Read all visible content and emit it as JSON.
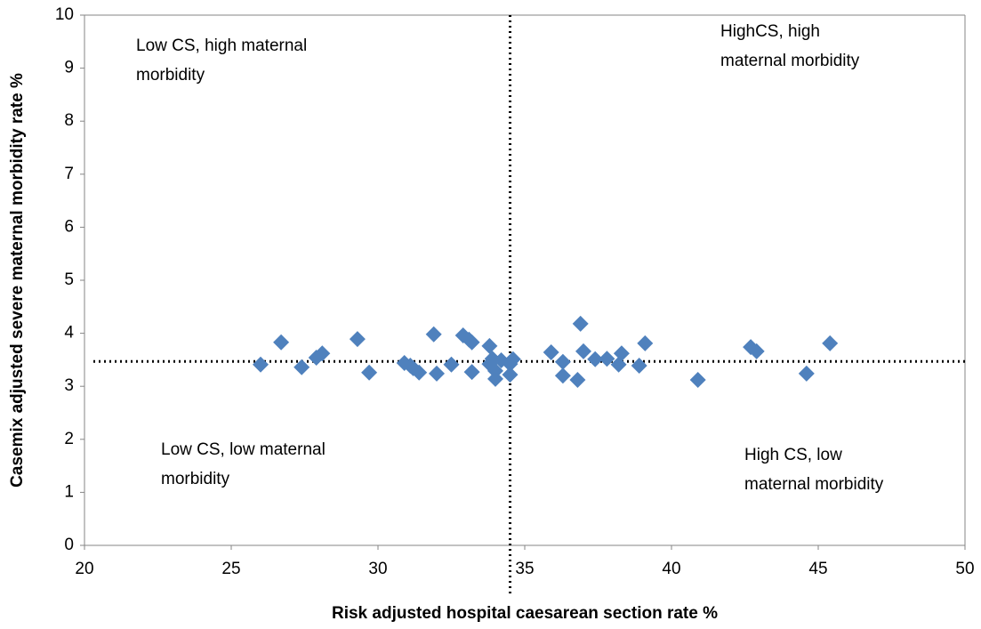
{
  "chart_data": {
    "type": "scatter",
    "x_label": "Risk adjusted hospital caesarean section rate %",
    "y_label": "Casemix adjusted severe maternal morbidity rate %",
    "x": [
      26.0,
      26.7,
      27.4,
      27.9,
      28.1,
      29.3,
      29.7,
      30.9,
      31.1,
      31.2,
      31.4,
      31.9,
      32.0,
      32.5,
      32.9,
      33.1,
      33.2,
      33.2,
      33.8,
      33.8,
      33.9,
      34.0,
      34.0,
      34.2,
      34.5,
      34.5,
      34.6,
      35.9,
      36.3,
      36.3,
      36.8,
      36.9,
      37.0,
      37.4,
      37.8,
      38.2,
      38.3,
      38.9,
      39.1,
      40.9,
      42.7,
      42.9,
      44.6,
      45.4
    ],
    "values": [
      3.41,
      3.83,
      3.36,
      3.54,
      3.62,
      3.89,
      3.26,
      3.44,
      3.39,
      3.34,
      3.26,
      3.98,
      3.24,
      3.41,
      3.96,
      3.88,
      3.83,
      3.27,
      3.76,
      3.42,
      3.52,
      3.29,
      3.14,
      3.49,
      3.42,
      3.22,
      3.51,
      3.64,
      3.46,
      3.2,
      3.12,
      4.18,
      3.66,
      3.51,
      3.52,
      3.41,
      3.62,
      3.39,
      3.81,
      3.12,
      3.74,
      3.66,
      3.24,
      3.81
    ],
    "color": "#4f81bd",
    "xlim": [
      20,
      50
    ],
    "xticks": [
      20,
      25,
      30,
      35,
      40,
      45,
      50
    ],
    "ylim": [
      0,
      10
    ],
    "yticks": [
      0,
      1,
      2,
      3,
      4,
      5,
      6,
      7,
      8,
      9,
      10
    ],
    "reference_x": 34.5,
    "reference_y": 3.47,
    "annotations": [
      [
        "Low CS, high maternal",
        "morbidity"
      ],
      [
        "HighCS, high",
        "maternal  morbidity"
      ],
      [
        "Low CS, low maternal",
        "morbidity"
      ],
      [
        "High CS, low",
        "maternal  morbidity"
      ]
    ]
  }
}
